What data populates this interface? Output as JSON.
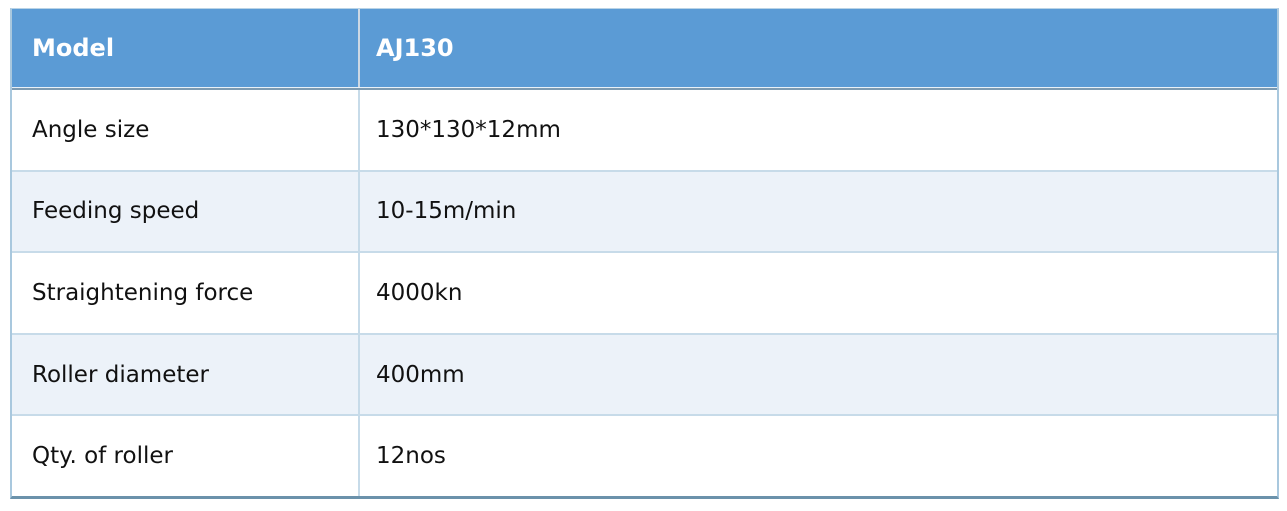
{
  "table": {
    "header": {
      "model_label": "Model",
      "model_value": "AJ130"
    },
    "rows": [
      {
        "label": "Angle size",
        "value": "130*130*12mm"
      },
      {
        "label": "Feeding speed",
        "value": "10-15m/min"
      },
      {
        "label": "Straightening force",
        "value": "4000kn"
      },
      {
        "label": "Roller diameter",
        "value": "400mm"
      },
      {
        "label": "Qty. of roller",
        "value": "12nos"
      }
    ],
    "colors": {
      "header_bg": "#5b9bd5",
      "header_text": "#ffffff",
      "row_bg": "#ffffff",
      "row_alt_bg": "#ecf2f9",
      "grid_line": "#c7dbe9",
      "header_rule": "#7c9ab1",
      "outer_side_border": "#a9c8de",
      "outer_bottom_border": "#6b92ab",
      "body_text": "#111111"
    }
  }
}
